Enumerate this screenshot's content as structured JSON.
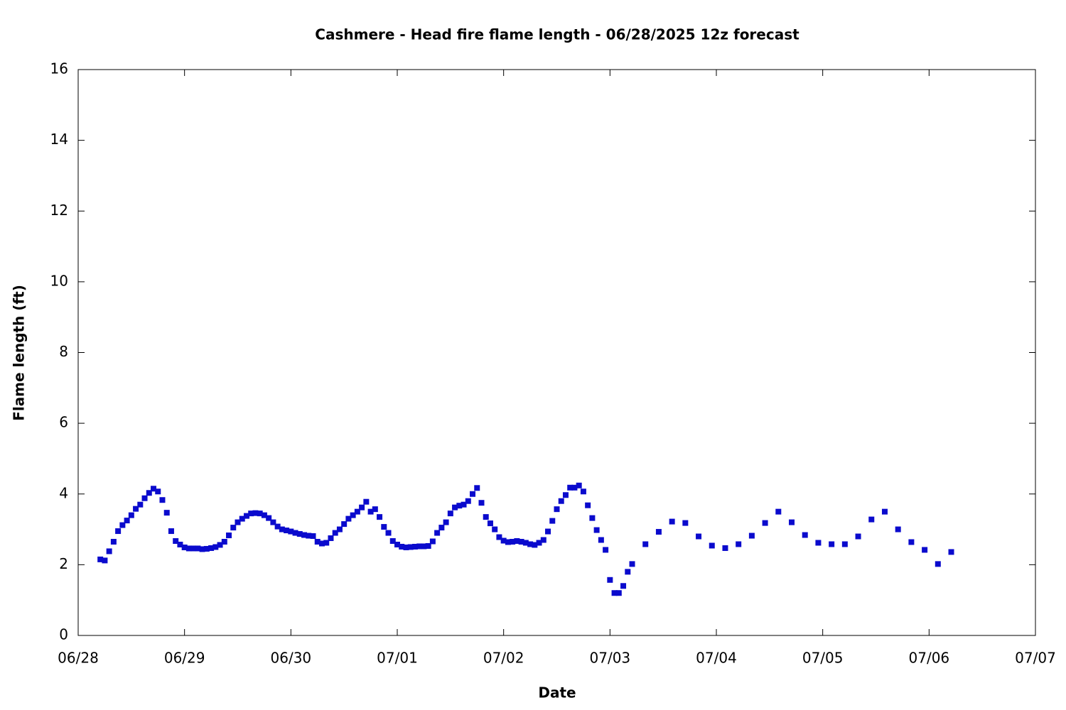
{
  "chart_data": {
    "type": "scatter",
    "title": "Cashmere - Head fire flame length - 06/28/2025 12z forecast",
    "x_label": "Date",
    "y_label": "Flame length (ft)",
    "xlim": [
      0,
      216
    ],
    "ylim": [
      0,
      16
    ],
    "xticks": [
      {
        "value": 0,
        "label": "06/28"
      },
      {
        "value": 24,
        "label": "06/29"
      },
      {
        "value": 48,
        "label": "06/30"
      },
      {
        "value": 72,
        "label": "07/01"
      },
      {
        "value": 96,
        "label": "07/02"
      },
      {
        "value": 120,
        "label": "07/03"
      },
      {
        "value": 144,
        "label": "07/04"
      },
      {
        "value": 168,
        "label": "07/05"
      },
      {
        "value": 192,
        "label": "07/06"
      },
      {
        "value": 216,
        "label": "07/07"
      }
    ],
    "yticks": [
      0,
      2,
      4,
      6,
      8,
      10,
      12,
      14,
      16
    ],
    "color": "#0a0acd",
    "x": [
      5,
      6,
      7,
      8,
      9,
      10,
      11,
      12,
      13,
      14,
      15,
      16,
      17,
      18,
      19,
      20,
      21,
      22,
      23,
      24,
      25,
      26,
      27,
      28,
      29,
      30,
      31,
      32,
      33,
      34,
      35,
      36,
      37,
      38,
      39,
      40,
      41,
      42,
      43,
      44,
      45,
      46,
      47,
      48,
      49,
      50,
      51,
      52,
      53,
      54,
      55,
      56,
      57,
      58,
      59,
      60,
      61,
      62,
      63,
      64,
      65,
      66,
      67,
      68,
      69,
      70,
      71,
      72,
      73,
      74,
      75,
      76,
      77,
      78,
      79,
      80,
      81,
      82,
      83,
      84,
      85,
      86,
      87,
      88,
      89,
      90,
      91,
      92,
      93,
      94,
      95,
      96,
      97,
      98,
      99,
      100,
      101,
      102,
      103,
      104,
      105,
      106,
      107,
      108,
      109,
      110,
      111,
      112,
      113,
      114,
      115,
      116,
      117,
      118,
      119,
      120,
      121,
      122,
      123,
      124,
      125,
      128,
      131,
      134,
      137,
      140,
      143,
      146,
      149,
      152,
      155,
      158,
      161,
      164,
      167,
      170,
      173,
      176,
      179,
      182,
      185,
      188,
      191,
      194,
      197
    ],
    "values": [
      2.15,
      2.12,
      2.38,
      2.65,
      2.95,
      3.12,
      3.25,
      3.4,
      3.58,
      3.7,
      3.88,
      4.03,
      4.15,
      4.07,
      3.83,
      3.47,
      2.95,
      2.67,
      2.57,
      2.49,
      2.46,
      2.46,
      2.46,
      2.44,
      2.45,
      2.47,
      2.5,
      2.56,
      2.65,
      2.83,
      3.05,
      3.2,
      3.3,
      3.38,
      3.45,
      3.46,
      3.45,
      3.4,
      3.32,
      3.2,
      3.08,
      3.0,
      2.97,
      2.94,
      2.9,
      2.87,
      2.84,
      2.82,
      2.81,
      2.65,
      2.6,
      2.62,
      2.75,
      2.9,
      3.0,
      3.15,
      3.3,
      3.4,
      3.5,
      3.62,
      3.78,
      3.5,
      3.57,
      3.35,
      3.07,
      2.9,
      2.67,
      2.57,
      2.51,
      2.49,
      2.5,
      2.51,
      2.52,
      2.52,
      2.53,
      2.66,
      2.9,
      3.05,
      3.2,
      3.45,
      3.62,
      3.67,
      3.7,
      3.8,
      4.0,
      4.17,
      3.75,
      3.35,
      3.17,
      3.0,
      2.78,
      2.68,
      2.64,
      2.65,
      2.67,
      2.65,
      2.62,
      2.58,
      2.56,
      2.62,
      2.7,
      2.94,
      3.24,
      3.57,
      3.8,
      3.97,
      4.18,
      4.18,
      4.24,
      4.07,
      3.68,
      3.32,
      2.98,
      2.7,
      2.42,
      1.57,
      1.2,
      1.2,
      1.4,
      1.8,
      2.02,
      2.58,
      2.93,
      3.22,
      3.18,
      2.8,
      2.54,
      2.47,
      2.58,
      2.82,
      3.18,
      3.5,
      3.2,
      2.84,
      2.62,
      2.58,
      2.58,
      2.8,
      3.28,
      3.5,
      3.0,
      2.64,
      2.42,
      2.02,
      2.36
    ]
  }
}
